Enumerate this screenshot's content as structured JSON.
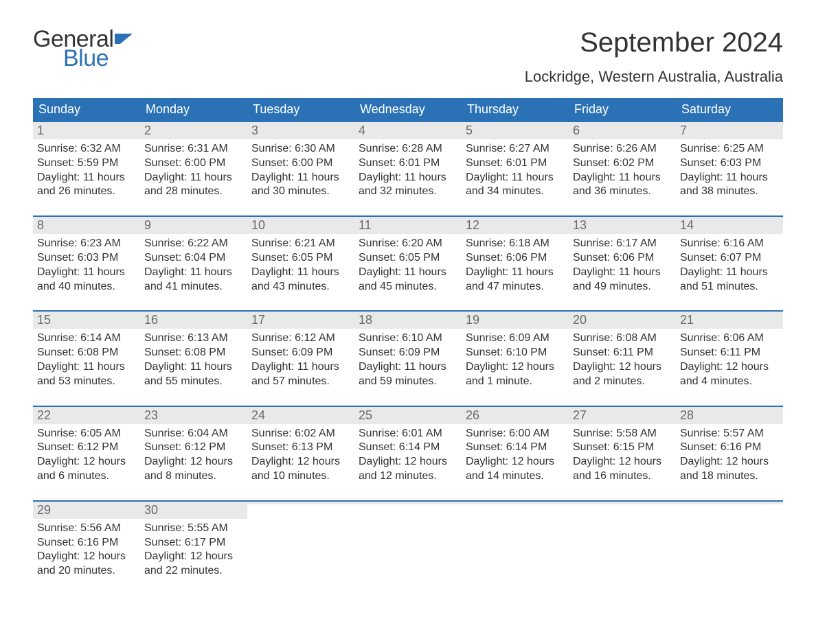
{
  "brand": {
    "word1": "General",
    "word2": "Blue",
    "word1_color": "#333333",
    "word2_color": "#2a72b5",
    "flag_color": "#2a72b5"
  },
  "header": {
    "title": "September 2024",
    "location": "Lockridge, Western Australia, Australia"
  },
  "calendar": {
    "type": "table",
    "columns": [
      "Sunday",
      "Monday",
      "Tuesday",
      "Wednesday",
      "Thursday",
      "Friday",
      "Saturday"
    ],
    "header_bg": "#2a72b5",
    "header_text_color": "#ffffff",
    "header_fontsize": 18,
    "week_divider_color": "#2a72b5",
    "daynum_bg": "#e9e9e9",
    "daynum_color": "#6a6a6a",
    "body_text_color": "#333333",
    "body_fontsize": 16,
    "weeks": [
      [
        {
          "n": "1",
          "sunrise": "Sunrise: 6:32 AM",
          "sunset": "Sunset: 5:59 PM",
          "dl1": "Daylight: 11 hours",
          "dl2": "and 26 minutes."
        },
        {
          "n": "2",
          "sunrise": "Sunrise: 6:31 AM",
          "sunset": "Sunset: 6:00 PM",
          "dl1": "Daylight: 11 hours",
          "dl2": "and 28 minutes."
        },
        {
          "n": "3",
          "sunrise": "Sunrise: 6:30 AM",
          "sunset": "Sunset: 6:00 PM",
          "dl1": "Daylight: 11 hours",
          "dl2": "and 30 minutes."
        },
        {
          "n": "4",
          "sunrise": "Sunrise: 6:28 AM",
          "sunset": "Sunset: 6:01 PM",
          "dl1": "Daylight: 11 hours",
          "dl2": "and 32 minutes."
        },
        {
          "n": "5",
          "sunrise": "Sunrise: 6:27 AM",
          "sunset": "Sunset: 6:01 PM",
          "dl1": "Daylight: 11 hours",
          "dl2": "and 34 minutes."
        },
        {
          "n": "6",
          "sunrise": "Sunrise: 6:26 AM",
          "sunset": "Sunset: 6:02 PM",
          "dl1": "Daylight: 11 hours",
          "dl2": "and 36 minutes."
        },
        {
          "n": "7",
          "sunrise": "Sunrise: 6:25 AM",
          "sunset": "Sunset: 6:03 PM",
          "dl1": "Daylight: 11 hours",
          "dl2": "and 38 minutes."
        }
      ],
      [
        {
          "n": "8",
          "sunrise": "Sunrise: 6:23 AM",
          "sunset": "Sunset: 6:03 PM",
          "dl1": "Daylight: 11 hours",
          "dl2": "and 40 minutes."
        },
        {
          "n": "9",
          "sunrise": "Sunrise: 6:22 AM",
          "sunset": "Sunset: 6:04 PM",
          "dl1": "Daylight: 11 hours",
          "dl2": "and 41 minutes."
        },
        {
          "n": "10",
          "sunrise": "Sunrise: 6:21 AM",
          "sunset": "Sunset: 6:05 PM",
          "dl1": "Daylight: 11 hours",
          "dl2": "and 43 minutes."
        },
        {
          "n": "11",
          "sunrise": "Sunrise: 6:20 AM",
          "sunset": "Sunset: 6:05 PM",
          "dl1": "Daylight: 11 hours",
          "dl2": "and 45 minutes."
        },
        {
          "n": "12",
          "sunrise": "Sunrise: 6:18 AM",
          "sunset": "Sunset: 6:06 PM",
          "dl1": "Daylight: 11 hours",
          "dl2": "and 47 minutes."
        },
        {
          "n": "13",
          "sunrise": "Sunrise: 6:17 AM",
          "sunset": "Sunset: 6:06 PM",
          "dl1": "Daylight: 11 hours",
          "dl2": "and 49 minutes."
        },
        {
          "n": "14",
          "sunrise": "Sunrise: 6:16 AM",
          "sunset": "Sunset: 6:07 PM",
          "dl1": "Daylight: 11 hours",
          "dl2": "and 51 minutes."
        }
      ],
      [
        {
          "n": "15",
          "sunrise": "Sunrise: 6:14 AM",
          "sunset": "Sunset: 6:08 PM",
          "dl1": "Daylight: 11 hours",
          "dl2": "and 53 minutes."
        },
        {
          "n": "16",
          "sunrise": "Sunrise: 6:13 AM",
          "sunset": "Sunset: 6:08 PM",
          "dl1": "Daylight: 11 hours",
          "dl2": "and 55 minutes."
        },
        {
          "n": "17",
          "sunrise": "Sunrise: 6:12 AM",
          "sunset": "Sunset: 6:09 PM",
          "dl1": "Daylight: 11 hours",
          "dl2": "and 57 minutes."
        },
        {
          "n": "18",
          "sunrise": "Sunrise: 6:10 AM",
          "sunset": "Sunset: 6:09 PM",
          "dl1": "Daylight: 11 hours",
          "dl2": "and 59 minutes."
        },
        {
          "n": "19",
          "sunrise": "Sunrise: 6:09 AM",
          "sunset": "Sunset: 6:10 PM",
          "dl1": "Daylight: 12 hours",
          "dl2": "and 1 minute."
        },
        {
          "n": "20",
          "sunrise": "Sunrise: 6:08 AM",
          "sunset": "Sunset: 6:11 PM",
          "dl1": "Daylight: 12 hours",
          "dl2": "and 2 minutes."
        },
        {
          "n": "21",
          "sunrise": "Sunrise: 6:06 AM",
          "sunset": "Sunset: 6:11 PM",
          "dl1": "Daylight: 12 hours",
          "dl2": "and 4 minutes."
        }
      ],
      [
        {
          "n": "22",
          "sunrise": "Sunrise: 6:05 AM",
          "sunset": "Sunset: 6:12 PM",
          "dl1": "Daylight: 12 hours",
          "dl2": "and 6 minutes."
        },
        {
          "n": "23",
          "sunrise": "Sunrise: 6:04 AM",
          "sunset": "Sunset: 6:12 PM",
          "dl1": "Daylight: 12 hours",
          "dl2": "and 8 minutes."
        },
        {
          "n": "24",
          "sunrise": "Sunrise: 6:02 AM",
          "sunset": "Sunset: 6:13 PM",
          "dl1": "Daylight: 12 hours",
          "dl2": "and 10 minutes."
        },
        {
          "n": "25",
          "sunrise": "Sunrise: 6:01 AM",
          "sunset": "Sunset: 6:14 PM",
          "dl1": "Daylight: 12 hours",
          "dl2": "and 12 minutes."
        },
        {
          "n": "26",
          "sunrise": "Sunrise: 6:00 AM",
          "sunset": "Sunset: 6:14 PM",
          "dl1": "Daylight: 12 hours",
          "dl2": "and 14 minutes."
        },
        {
          "n": "27",
          "sunrise": "Sunrise: 5:58 AM",
          "sunset": "Sunset: 6:15 PM",
          "dl1": "Daylight: 12 hours",
          "dl2": "and 16 minutes."
        },
        {
          "n": "28",
          "sunrise": "Sunrise: 5:57 AM",
          "sunset": "Sunset: 6:16 PM",
          "dl1": "Daylight: 12 hours",
          "dl2": "and 18 minutes."
        }
      ],
      [
        {
          "n": "29",
          "sunrise": "Sunrise: 5:56 AM",
          "sunset": "Sunset: 6:16 PM",
          "dl1": "Daylight: 12 hours",
          "dl2": "and 20 minutes."
        },
        {
          "n": "30",
          "sunrise": "Sunrise: 5:55 AM",
          "sunset": "Sunset: 6:17 PM",
          "dl1": "Daylight: 12 hours",
          "dl2": "and 22 minutes."
        },
        {
          "n": "",
          "sunrise": "",
          "sunset": "",
          "dl1": "",
          "dl2": ""
        },
        {
          "n": "",
          "sunrise": "",
          "sunset": "",
          "dl1": "",
          "dl2": ""
        },
        {
          "n": "",
          "sunrise": "",
          "sunset": "",
          "dl1": "",
          "dl2": ""
        },
        {
          "n": "",
          "sunrise": "",
          "sunset": "",
          "dl1": "",
          "dl2": ""
        },
        {
          "n": "",
          "sunrise": "",
          "sunset": "",
          "dl1": "",
          "dl2": ""
        }
      ]
    ]
  }
}
